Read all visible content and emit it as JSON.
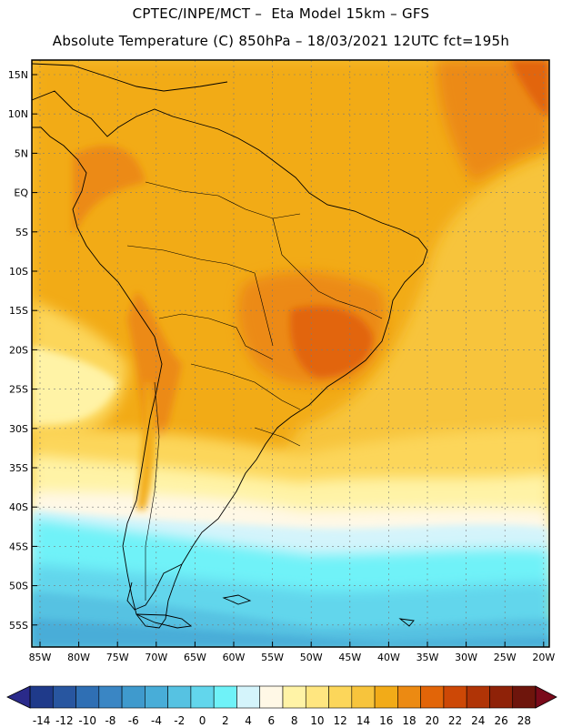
{
  "header": {
    "line1": "CPTEC/INPE/MCT –  Eta Model 15km – GFS",
    "line2": "Absolute Temperature (C) 850hPa – 18/03/2021 12UTC fct=195h"
  },
  "axes": {
    "lat_labels": [
      "15N",
      "10N",
      "5N",
      "EQ",
      "5S",
      "10S",
      "15S",
      "20S",
      "25S",
      "30S",
      "35S",
      "40S",
      "45S",
      "50S",
      "55S"
    ],
    "lon_labels": [
      "85W",
      "80W",
      "75W",
      "70W",
      "65W",
      "60W",
      "55W",
      "50W",
      "45W",
      "40W",
      "35W",
      "30W",
      "25W",
      "20W"
    ]
  },
  "colorbar": {
    "labels": [
      "-14",
      "-12",
      "-10",
      "-8",
      "-6",
      "-4",
      "-2",
      "0",
      "2",
      "4",
      "6",
      "8",
      "10",
      "12",
      "14",
      "16",
      "18",
      "20",
      "22",
      "24",
      "26",
      "28"
    ],
    "colors": [
      "#1f3a8a",
      "#2856a0",
      "#2f6fb4",
      "#3a86c4",
      "#3f9acd",
      "#48add8",
      "#56c2e2",
      "#62d6ec",
      "#6ff2f8",
      "#d4f4fb",
      "#fff8e6",
      "#fff3a6",
      "#ffe680",
      "#fcd65a",
      "#f7c43c",
      "#f2ab18",
      "#ec8a12",
      "#e26508",
      "#cd4806",
      "#b03406",
      "#8f2208",
      "#6e150c"
    ],
    "low_arrow_color": "#2a2a8a",
    "high_arrow_color": "#7a0a1a"
  }
}
